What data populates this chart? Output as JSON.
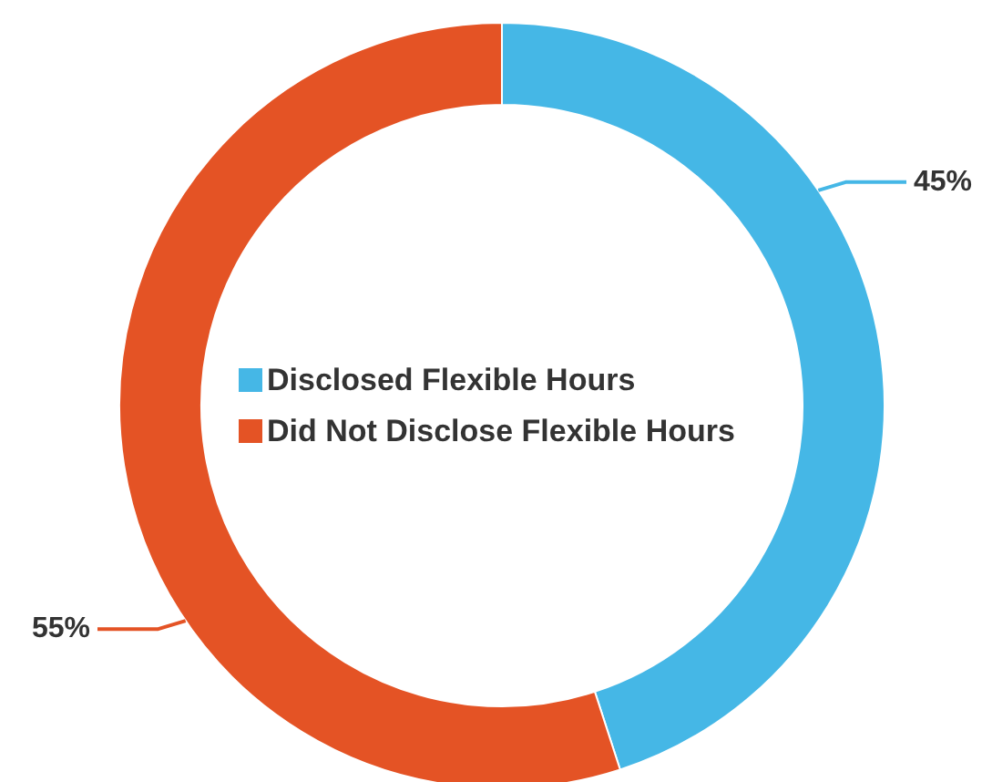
{
  "chart_data": {
    "type": "donut",
    "categories": [
      "Disclosed Flexible Hours",
      "Did Not Disclose Flexible Hours"
    ],
    "values": [
      45,
      55
    ],
    "colors": [
      "#45b7e6",
      "#e45325"
    ],
    "value_labels": [
      "45%",
      "55%"
    ],
    "legend": "center"
  }
}
